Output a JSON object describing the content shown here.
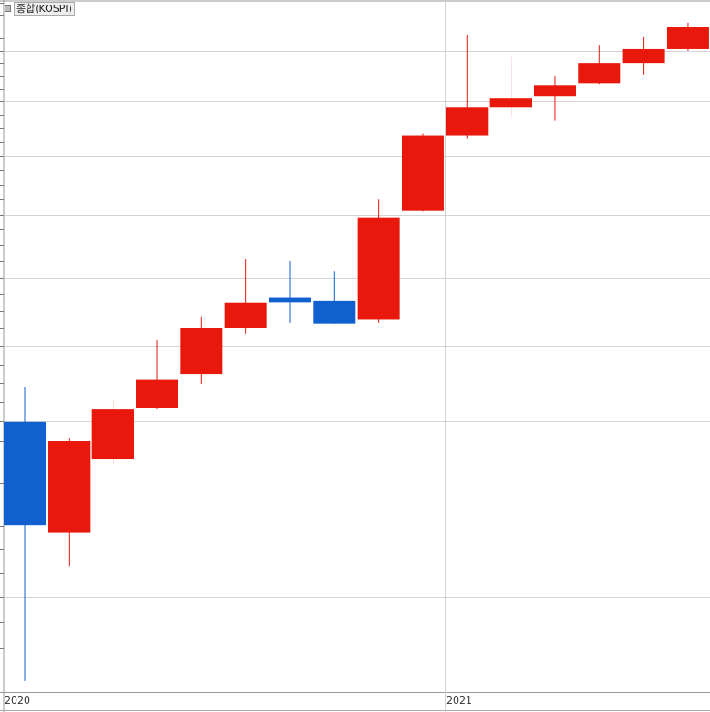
{
  "chart_data": {
    "type": "candlestick",
    "title": "종합(KOSPI)",
    "y_scale": "log",
    "ylim": [
      1419,
      3405
    ],
    "grid": true,
    "y_gridlines": [
      1600,
      1800,
      2000,
      2200,
      2400,
      2600,
      2800,
      3000,
      3200
    ],
    "x_tick_labels": [
      {
        "label": "2020",
        "at_index": 0
      },
      {
        "label": "2021",
        "at_index": 10
      }
    ],
    "up_color": "#e8190c",
    "down_color": "#1060d0",
    "candles": [
      {
        "o": 1998,
        "h": 2090,
        "l": 1439,
        "c": 1754
      },
      {
        "o": 1737,
        "h": 1958,
        "l": 1665,
        "c": 1950
      },
      {
        "o": 1907,
        "h": 2056,
        "l": 1894,
        "c": 2030
      },
      {
        "o": 2035,
        "h": 2217,
        "l": 2030,
        "c": 2108
      },
      {
        "o": 2124,
        "h": 2283,
        "l": 2097,
        "c": 2251
      },
      {
        "o": 2251,
        "h": 2458,
        "l": 2236,
        "c": 2326
      },
      {
        "o": 2340,
        "h": 2450,
        "l": 2267,
        "c": 2327
      },
      {
        "o": 2331,
        "h": 2418,
        "l": 2262,
        "c": 2265
      },
      {
        "o": 2276,
        "h": 2650,
        "l": 2267,
        "c": 2591
      },
      {
        "o": 2612,
        "h": 2880,
        "l": 2610,
        "c": 2873
      },
      {
        "o": 2873,
        "h": 3266,
        "l": 2863,
        "c": 2979
      },
      {
        "o": 2979,
        "h": 3178,
        "l": 2943,
        "c": 3014
      },
      {
        "o": 3021,
        "h": 3100,
        "l": 2930,
        "c": 3063
      },
      {
        "o": 3070,
        "h": 3224,
        "l": 3067,
        "c": 3150
      },
      {
        "o": 3150,
        "h": 3259,
        "l": 3104,
        "c": 3206
      },
      {
        "o": 3206,
        "h": 3316,
        "l": 3199,
        "c": 3297
      }
    ]
  }
}
